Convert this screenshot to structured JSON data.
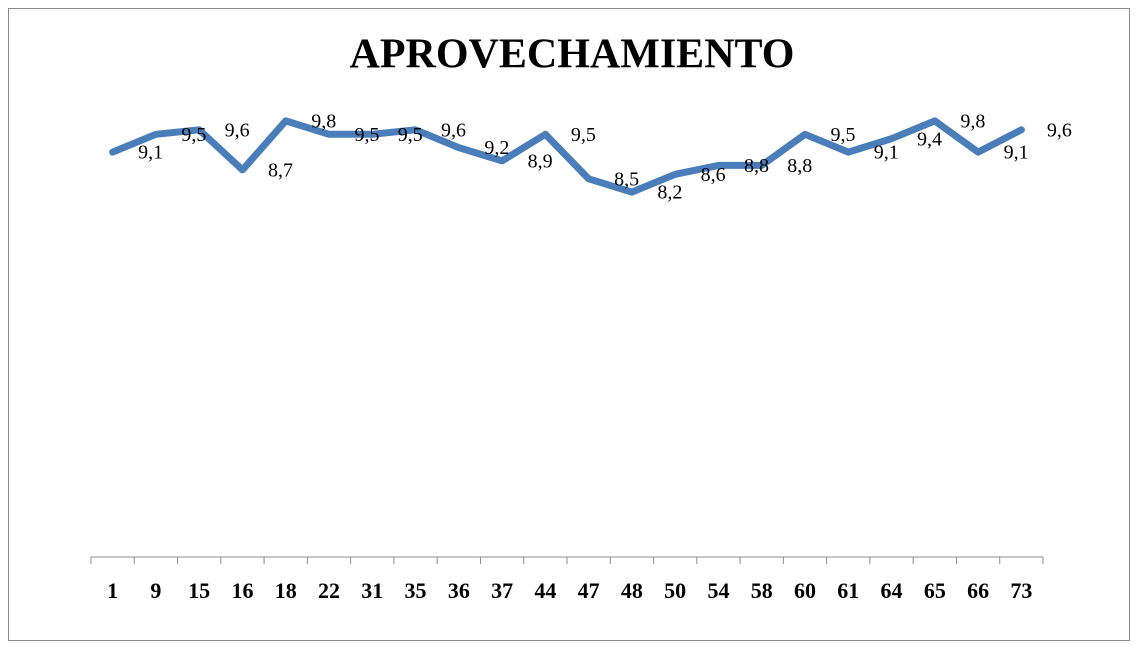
{
  "chart_data": {
    "type": "line",
    "title": "APROVECHAMIENTO",
    "categories": [
      "1",
      "9",
      "15",
      "16",
      "18",
      "22",
      "31",
      "35",
      "36",
      "37",
      "44",
      "47",
      "48",
      "50",
      "54",
      "58",
      "60",
      "61",
      "64",
      "65",
      "66",
      "73"
    ],
    "series": [
      {
        "name": null,
        "color": "#4a7ebb",
        "values": [
          9.1,
          9.5,
          9.6,
          8.7,
          9.8,
          9.5,
          9.5,
          9.6,
          9.2,
          8.9,
          9.5,
          8.5,
          8.2,
          8.6,
          8.8,
          8.8,
          9.5,
          9.1,
          9.4,
          9.8,
          9.1,
          9.6
        ],
        "value_labels": [
          "9,1",
          "9,5",
          "9,6",
          "8,7",
          "9,8",
          "9,5",
          "9,5",
          "9,6",
          "9,2",
          "8,9",
          "9,5",
          "8,5",
          "8,2",
          "8,6",
          "8,8",
          "8,8",
          "9,5",
          "9,1",
          "9,4",
          "9,8",
          "9,1",
          "9,6"
        ]
      }
    ],
    "ylim": [
      0,
      10
    ],
    "legend": false,
    "grid": false
  }
}
